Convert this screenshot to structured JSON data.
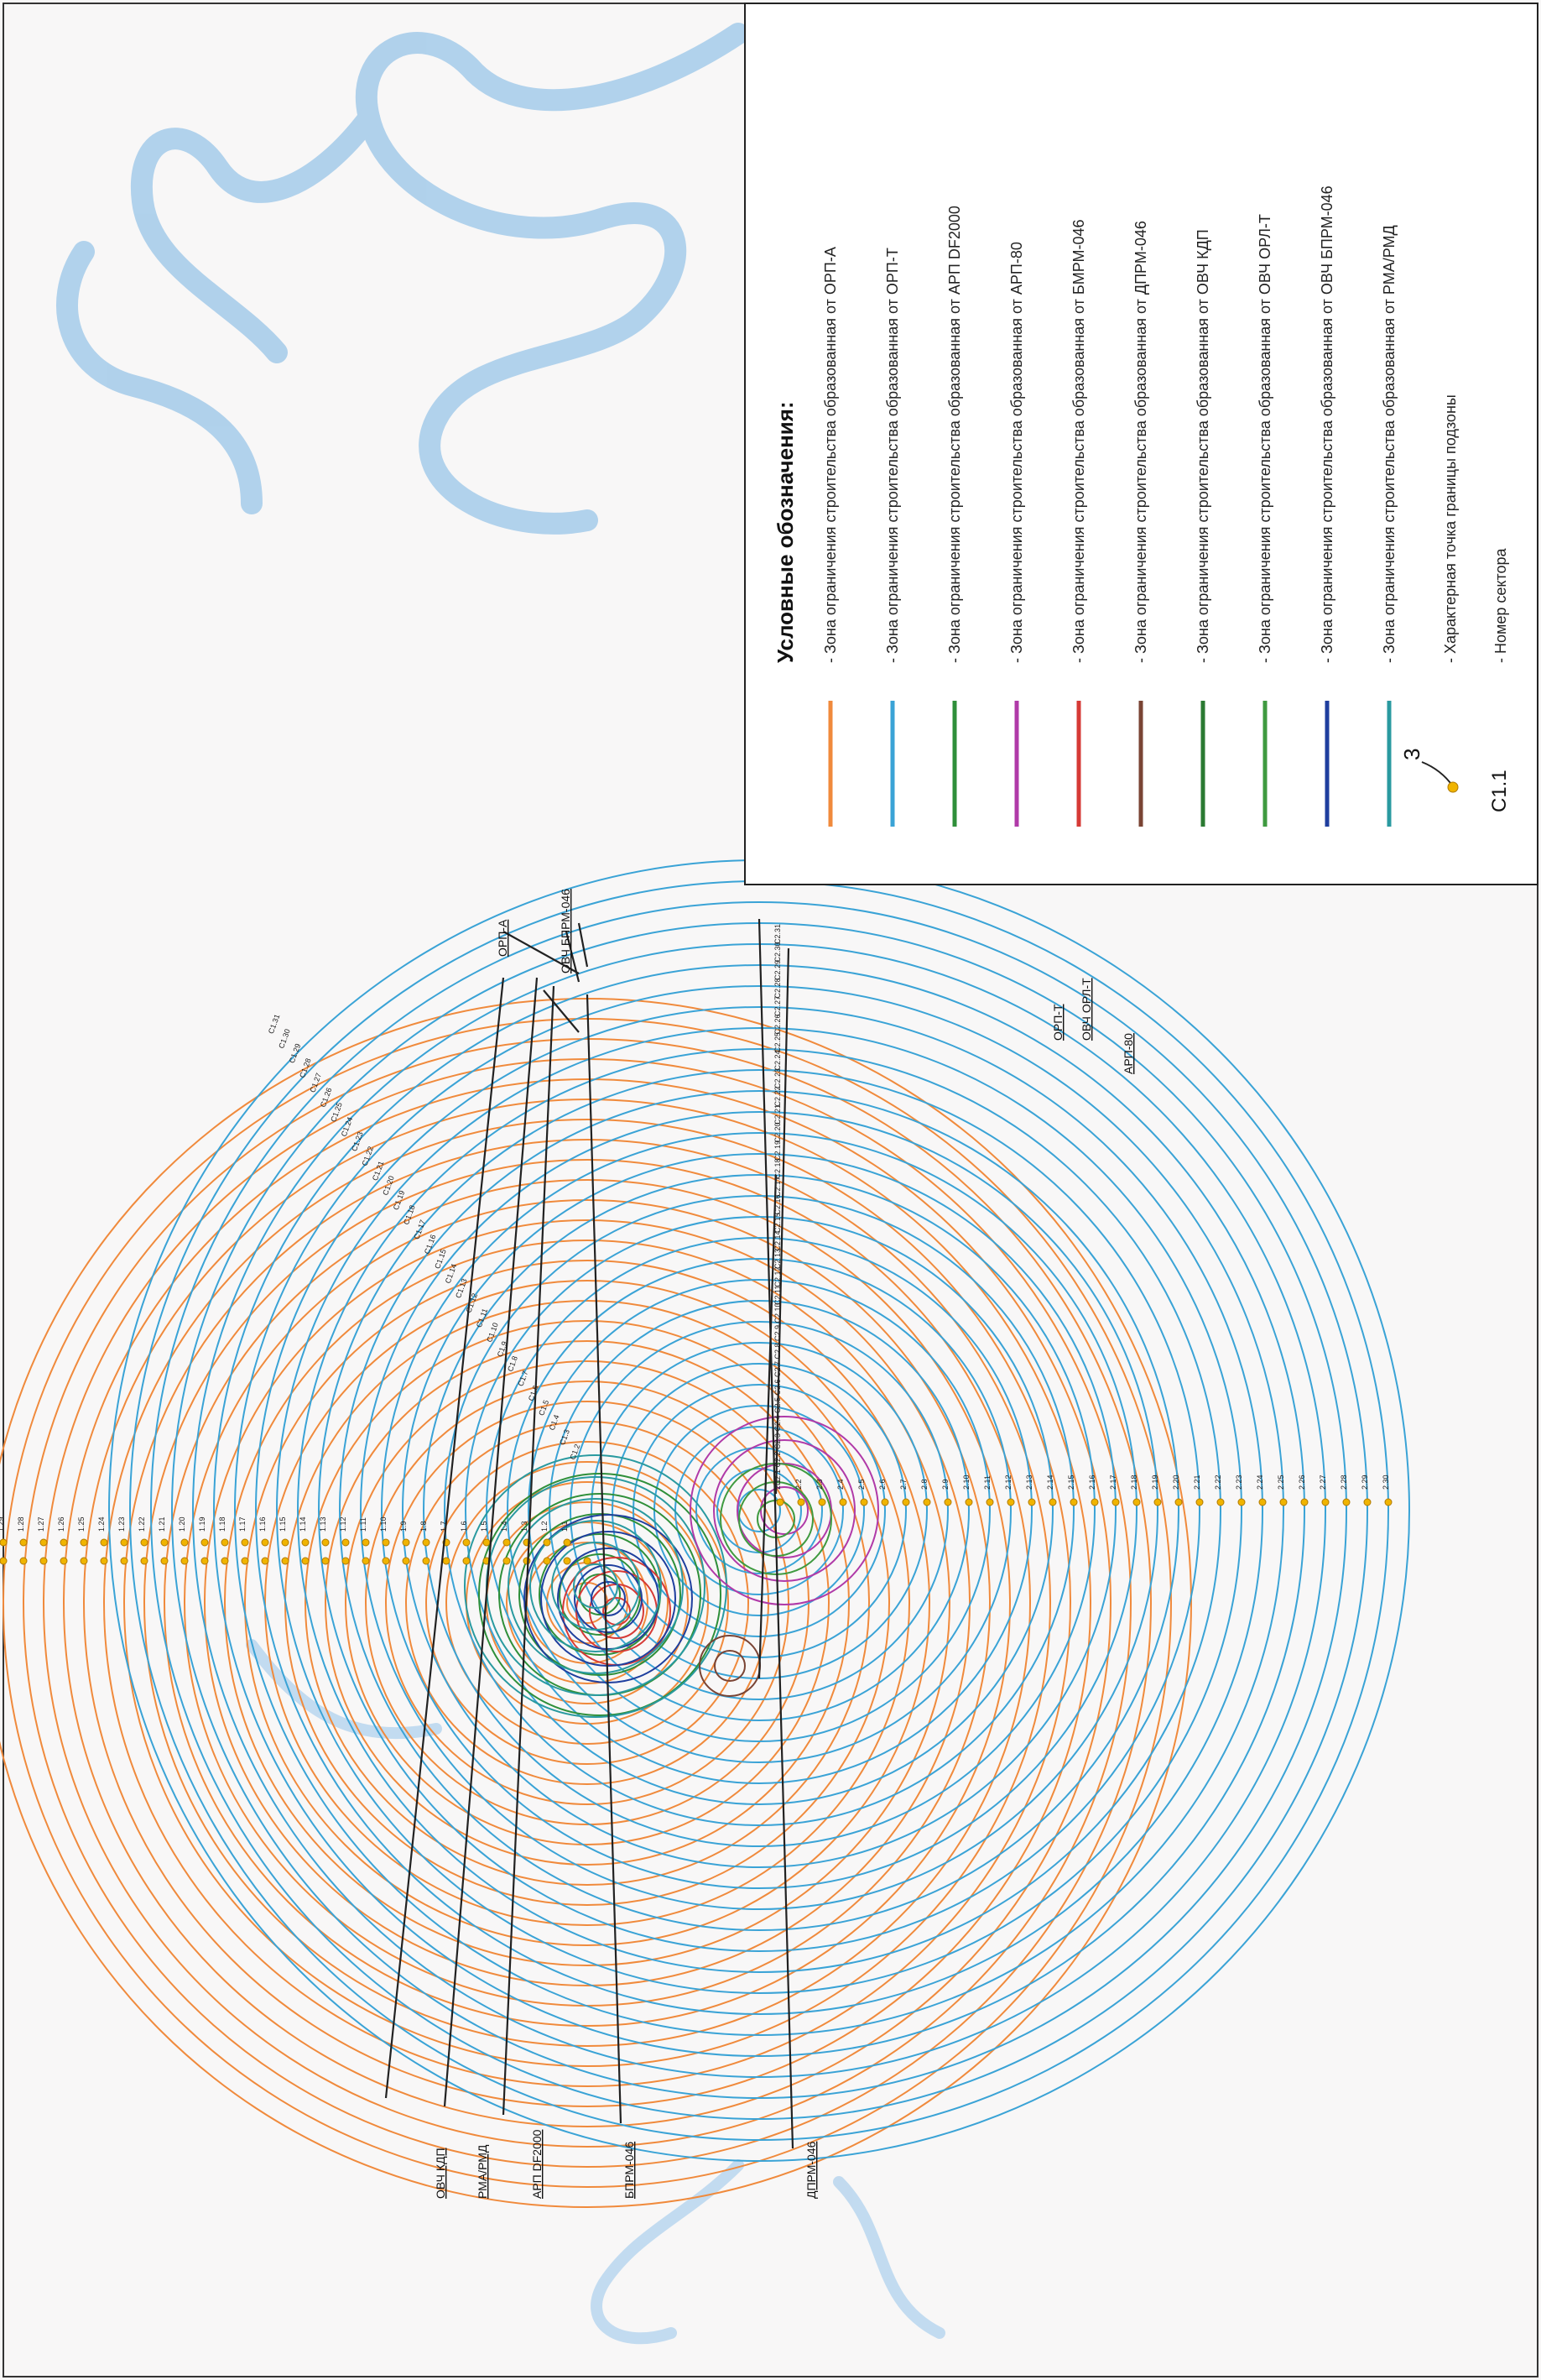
{
  "legend": {
    "title": "Условные обозначения:",
    "items": [
      {
        "label": "- Зона ограничения строительства образованная от ОРП-А",
        "color": "#f08a3c"
      },
      {
        "label": "- Зона ограничения строительства образованная от ОРП-Т",
        "color": "#3aa3d6"
      },
      {
        "label": "- Зона ограничения строительства образованная от АРП DF2000",
        "color": "#2f8f3a"
      },
      {
        "label": "- Зона ограничения строительства образованная от АРП-80",
        "color": "#b03aa8"
      },
      {
        "label": "- Зона ограничения строительства образованная от БМРМ-046",
        "color": "#d63a36"
      },
      {
        "label": "- Зона ограничения строительства образованная от ДПРМ-046",
        "color": "#7a4434"
      },
      {
        "label": "- Зона ограничения строительства образованная от ОВЧ КДП",
        "color": "#2a7a32"
      },
      {
        "label": "- Зона ограничения строительства образованная от ОВЧ ОРЛ-Т",
        "color": "#3f9a40"
      },
      {
        "label": "- Зона ограничения строительства образованная от ОВЧ БПРМ-046",
        "color": "#1f3f9e"
      },
      {
        "label": "- Зона ограничения строительства образованная от РМА/РМД",
        "color": "#2a9aa0"
      }
    ],
    "point_marker_value": "3",
    "point_label": "- Характерная точка границы подзоны",
    "sector_code": "С1.1",
    "sector_label": "- Номер сектора"
  },
  "callouts": {
    "orp_a": "ОРП-А",
    "ovch_bprm": "ОВЧ БПРМ-046",
    "orp_t": "ОРП-Т",
    "ovch_ort": "ОВЧ ОРЛ-Т",
    "arp80": "АРП-80",
    "ovch_kdp": "ОВЧ КДП",
    "rma": "РМА/РМД",
    "arp_df": "АРП DF2000",
    "bprm": "БПРМ-046",
    "dprm": "ДПРМ-046"
  },
  "sector_labels": {
    "s1": [
      "1.1",
      "1.2",
      "1.3",
      "1.4",
      "1.5",
      "1.6",
      "1.7",
      "1.8",
      "1.9",
      "1.10",
      "1.11",
      "1.12",
      "1.13",
      "1.14",
      "1.15",
      "1.16",
      "1.17",
      "1.18",
      "1.19",
      "1.20",
      "1.21",
      "1.22",
      "1.23",
      "1.24",
      "1.25",
      "1.26",
      "1.27",
      "1.28",
      "1.29",
      "1.30"
    ],
    "s2": [
      "2.1",
      "2.2",
      "2.3",
      "2.4",
      "2.5",
      "2.6",
      "2.7",
      "2.8",
      "2.9",
      "2.10",
      "2.11",
      "2.12",
      "2.13",
      "2.14",
      "2.15",
      "2.16",
      "2.17",
      "2.18",
      "2.19",
      "2.20",
      "2.21",
      "2.22",
      "2.23",
      "2.24",
      "2.25",
      "2.26",
      "2.27",
      "2.28",
      "2.29",
      "2.30"
    ],
    "c2": [
      "С2.1",
      "С2.2",
      "С2.3",
      "С2.4",
      "С2.5",
      "С2.6",
      "С2.7",
      "С2.8",
      "С2.9",
      "С2.10",
      "С2.11",
      "С2.12",
      "С2.13",
      "С2.14",
      "С2.15",
      "С2.16",
      "С2.17",
      "С2.18",
      "С2.19",
      "С2.20",
      "С2.21",
      "С2.22",
      "С2.23",
      "С2.24",
      "С2.25",
      "С2.26",
      "С2.27",
      "С2.28",
      "С2.29",
      "С2.30",
      "С2.31"
    ],
    "c1": [
      "С1.2",
      "С1.3",
      "С1.4",
      "С1.5",
      "С1.6",
      "С1.7",
      "С1.8",
      "С1.9",
      "С1.10",
      "С1.11",
      "С1.12",
      "С1.13",
      "С1.14",
      "С1.15",
      "С1.16",
      "С1.17",
      "С1.18",
      "С1.19",
      "С1.20",
      "С1.21",
      "С1.22",
      "С1.23",
      "С1.24",
      "С1.25",
      "С1.26",
      "С1.27",
      "С1.28",
      "С1.29",
      "С1.30",
      "С1.31"
    ]
  }
}
